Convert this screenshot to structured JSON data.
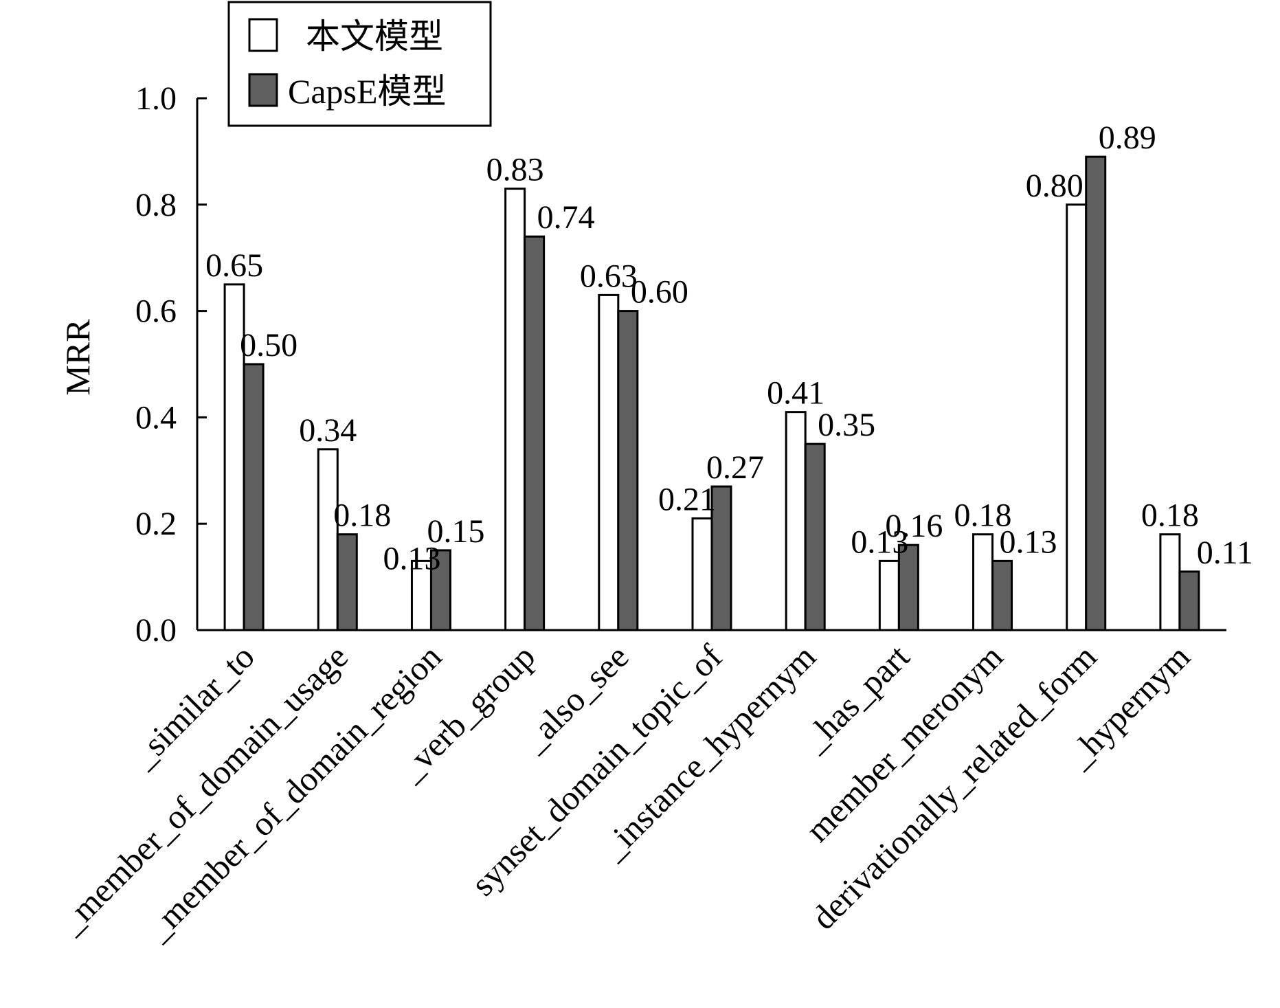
{
  "chart_data": {
    "type": "bar",
    "ylabel": "MRR",
    "ylim": [
      0,
      1.0
    ],
    "yticks": [
      "0.0",
      "0.2",
      "0.4",
      "0.6",
      "0.8",
      "1.0"
    ],
    "categories": [
      "_similar_to",
      "_member_of_domain_usage",
      "_member_of_domain_region",
      "_verb_group",
      "_also_see",
      "synset_domain_topic_of",
      "_instance_hypernym",
      "_has_part",
      "member_meronym",
      "derivationally_related_form",
      "_hypernym"
    ],
    "series": [
      {
        "name": "本文模型",
        "color": "#ffffff",
        "values": [
          0.65,
          0.34,
          0.13,
          0.83,
          0.63,
          0.21,
          0.41,
          0.13,
          0.18,
          0.8,
          0.18
        ],
        "labels": [
          "0.65",
          "0.34",
          "0.13",
          "0.83",
          "0.63",
          "0.21",
          "0.41",
          "0.13",
          "0.18",
          "0.80",
          "0.18"
        ]
      },
      {
        "name": "CapsE模型",
        "color": "#5f5f5f",
        "values": [
          0.5,
          0.18,
          0.15,
          0.74,
          0.6,
          0.27,
          0.35,
          0.16,
          0.13,
          0.89,
          0.11
        ],
        "labels": [
          "0.50",
          "0.18",
          "0.15",
          "0.74",
          "0.60",
          "0.27",
          "0.35",
          "0.16",
          "0.13",
          "0.89",
          "0.11"
        ]
      }
    ],
    "legend_position": "top-left",
    "grid": false
  }
}
